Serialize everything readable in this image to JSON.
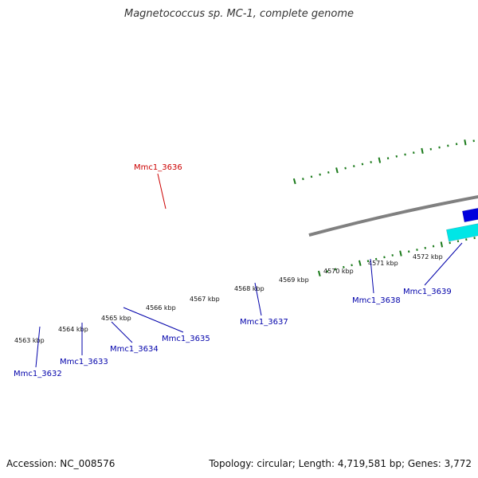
{
  "title": "Magnetococcus sp. MC-1, complete genome",
  "footer": {
    "accession": "Accession: NC_008576",
    "summary": "Topology: circular; Length: 4,719,581 bp; Genes: 3,772"
  },
  "colors": {
    "backbone": "#808080",
    "tick": "#1a7a1a",
    "gene_forward": "#0000dd",
    "gene_forward_light": "#00e6e6",
    "gene_highlight": "#ee1111",
    "label_normal": "#0000aa",
    "label_highlight": "#cc0000"
  },
  "kbp_labels": [
    {
      "text": "4563 kbp"
    },
    {
      "text": "4564 kbp"
    },
    {
      "text": "4565 kbp"
    },
    {
      "text": "4566 kbp"
    },
    {
      "text": "4567 kbp"
    },
    {
      "text": "4568 kbp"
    },
    {
      "text": "4569 kbp"
    },
    {
      "text": "4570 kbp"
    },
    {
      "text": "4571 kbp"
    },
    {
      "text": "4572 kbp"
    }
  ],
  "genes": [
    {
      "label": "Mmc1_3636",
      "highlight": true
    },
    {
      "label": "Mmc1_3632",
      "highlight": false
    },
    {
      "label": "Mmc1_3633",
      "highlight": false
    },
    {
      "label": "Mmc1_3634",
      "highlight": false
    },
    {
      "label": "Mmc1_3635",
      "highlight": false
    },
    {
      "label": "Mmc1_3637",
      "highlight": false
    },
    {
      "label": "Mmc1_3638",
      "highlight": false
    },
    {
      "label": "Mmc1_3639",
      "highlight": false
    }
  ]
}
